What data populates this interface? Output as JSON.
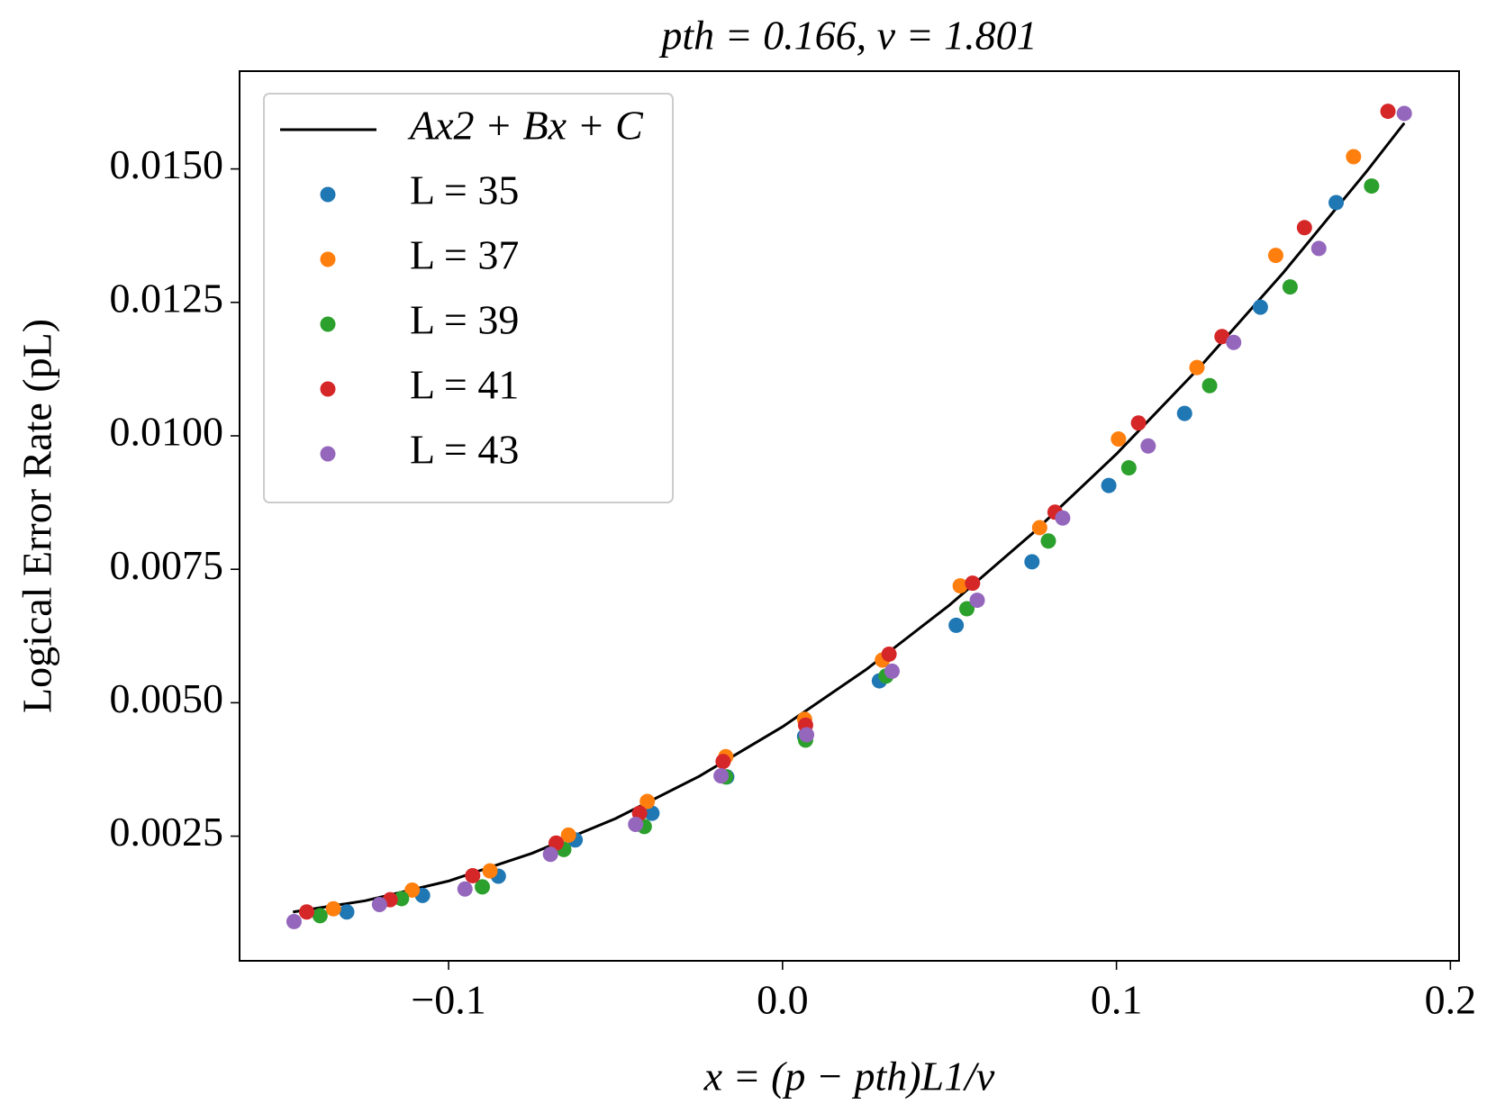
{
  "chart_data": {
    "type": "scatter",
    "title": "pth = 0.166, ν = 1.801",
    "x_label": "x = (p − pth)L1/ν",
    "y_label": "Logical Error Rate (pL)",
    "xlim": [
      -0.1626,
      0.2026
    ],
    "ylim": [
      0.000165,
      0.016832
    ],
    "xticks": [
      {
        "value": -0.1,
        "label": "−0.1"
      },
      {
        "value": 0,
        "label": "0.0"
      },
      0.1,
      0.2
    ],
    "yticks": [
      0.0025,
      {
        "value": 0.005,
        "label": "0.0050"
      },
      0.0075,
      {
        "value": 0.01,
        "label": "0.0100"
      },
      0.0125,
      {
        "value": 0.015,
        "label": "0.0150"
      }
    ],
    "grid": false,
    "legend": "upper left",
    "fit": {
      "name": "Ax2 + Bx + C",
      "color": "#000000",
      "x": [
        -0.1466,
        -0.125,
        -0.1,
        -0.075,
        -0.05,
        -0.025,
        0,
        0.025,
        0.05,
        0.075,
        0.1,
        0.125,
        0.15,
        0.175,
        0.1862
      ],
      "values": [
        0.00108,
        0.00129,
        0.00166,
        0.00218,
        0.00283,
        0.00362,
        0.00455,
        0.00562,
        0.00683,
        0.00818,
        0.00966,
        0.01129,
        0.01306,
        0.01496,
        0.01586
      ]
    },
    "series": [
      {
        "name": "L = 35",
        "color": "#1f77b4",
        "x": [
          -0.1305,
          -0.1078,
          -0.0851,
          -0.0621,
          -0.0391,
          -0.0167,
          0.0066,
          0.029,
          0.052,
          0.0747,
          0.0977,
          0.1204,
          0.1431,
          0.1658
        ],
        "values": [
          0.00108,
          0.00139,
          0.00175,
          0.00243,
          0.00293,
          0.00361,
          0.00437,
          0.00541,
          0.00645,
          0.00764,
          0.00907,
          0.01042,
          0.01241,
          0.01437
        ]
      },
      {
        "name": "L = 37",
        "color": "#ff7f0e",
        "x": [
          -0.1345,
          -0.1109,
          -0.0876,
          -0.0641,
          -0.0405,
          -0.017,
          0.0066,
          0.0299,
          0.0532,
          0.077,
          0.1006,
          0.1241,
          0.1477,
          0.171
        ],
        "values": [
          0.00114,
          0.00149,
          0.00185,
          0.00252,
          0.00315,
          0.00399,
          0.00469,
          0.0058,
          0.00719,
          0.00828,
          0.00994,
          0.01128,
          0.01338,
          0.01523
        ]
      },
      {
        "name": "L = 39",
        "color": "#2ca02c",
        "x": [
          -0.1385,
          -0.1141,
          -0.0899,
          -0.0655,
          -0.0414,
          -0.017,
          0.0069,
          0.031,
          0.0552,
          0.0796,
          0.1037,
          0.1279,
          0.152,
          0.1764
        ],
        "values": [
          0.00101,
          0.00133,
          0.00155,
          0.00225,
          0.00268,
          0.00361,
          0.0043,
          0.0055,
          0.00676,
          0.00803,
          0.0094,
          0.01094,
          0.01279,
          0.01468
        ]
      },
      {
        "name": "L = 41",
        "color": "#d62728",
        "x": [
          -0.1425,
          -0.1175,
          -0.0928,
          -0.0678,
          -0.0428,
          -0.0178,
          0.0069,
          0.0319,
          0.0569,
          0.0816,
          0.1066,
          0.1316,
          0.1563,
          0.1813
        ],
        "values": [
          0.00108,
          0.00131,
          0.00176,
          0.00237,
          0.00293,
          0.0039,
          0.00458,
          0.00591,
          0.00724,
          0.00857,
          0.01024,
          0.01186,
          0.0139,
          0.01608
        ]
      },
      {
        "name": "L = 43",
        "color": "#9467bd",
        "x": [
          -0.1463,
          -0.1207,
          -0.0951,
          -0.0695,
          -0.044,
          -0.0184,
          0.0072,
          0.0328,
          0.0583,
          0.0839,
          0.1095,
          0.1351,
          0.1606,
          0.1862
        ],
        "values": [
          0.0009,
          0.00122,
          0.00151,
          0.00216,
          0.00272,
          0.00363,
          0.0044,
          0.00559,
          0.00692,
          0.00846,
          0.00981,
          0.01175,
          0.01351,
          0.01604
        ]
      }
    ]
  }
}
